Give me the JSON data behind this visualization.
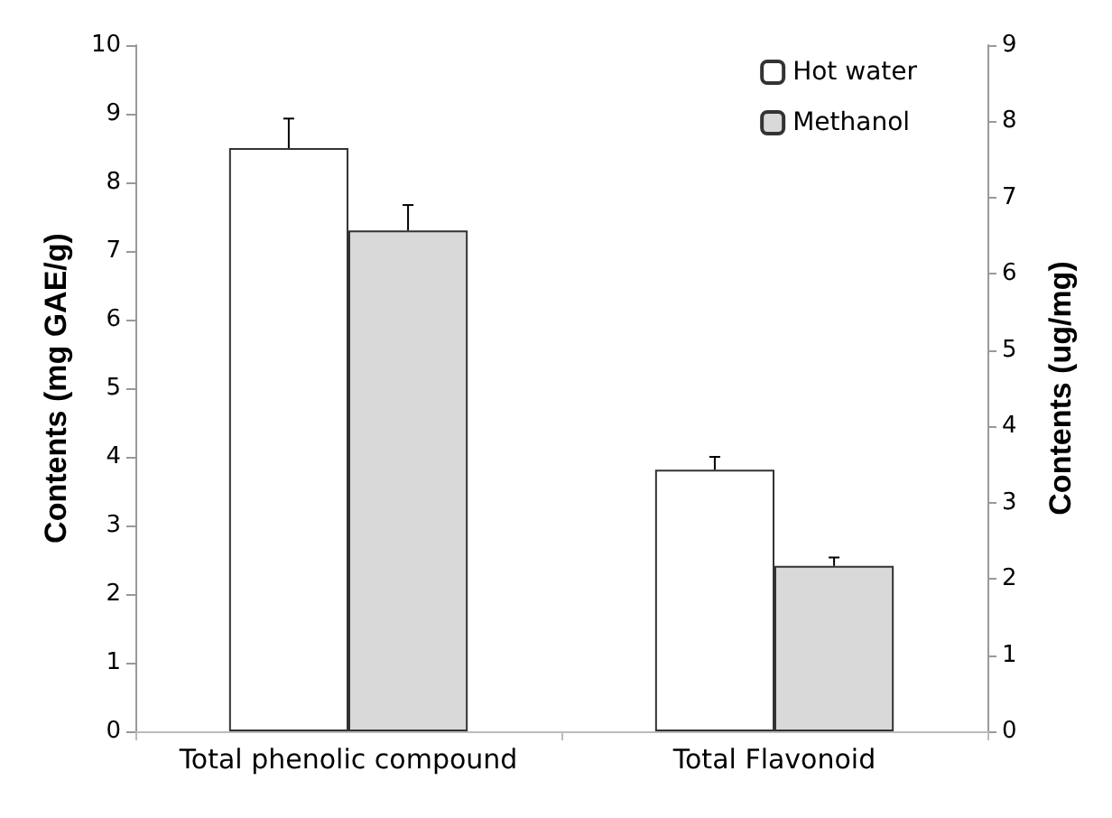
{
  "chart_data": {
    "type": "bar",
    "categories": [
      "Total phenolic compound",
      "Total Flavonoid"
    ],
    "ylabel": "Contents (mg GAE/g)",
    "y2label": "Contents (ug/mg)",
    "ylim": [
      0,
      10
    ],
    "yticks": [
      0,
      1,
      2,
      3,
      4,
      5,
      6,
      7,
      8,
      9,
      10
    ],
    "y2lim": [
      0,
      9
    ],
    "y2ticks": [
      0,
      1,
      2,
      3,
      4,
      5,
      6,
      7,
      8,
      9
    ],
    "series": [
      {
        "name": "Hot water",
        "color": "#ffffff",
        "values": [
          8.5,
          null
        ],
        "errors": [
          [
            8.5,
            8.93
          ],
          null
        ]
      },
      {
        "name": "Methanol",
        "color": "#d9d9d9",
        "values": [
          7.3,
          null
        ],
        "errors": [
          [
            7.3,
            7.67
          ],
          null
        ]
      },
      {
        "color": "#ffffff",
        "axis": "y2",
        "values": [
          null,
          3.43
        ],
        "errors": [
          null,
          [
            3.43,
            3.6
          ]
        ]
      },
      {
        "color": "#d9d9d9",
        "axis": "y2",
        "values": [
          null,
          2.17
        ],
        "errors": [
          null,
          [
            2.17,
            2.28
          ]
        ]
      }
    ],
    "grid": false,
    "legend": "top right"
  }
}
